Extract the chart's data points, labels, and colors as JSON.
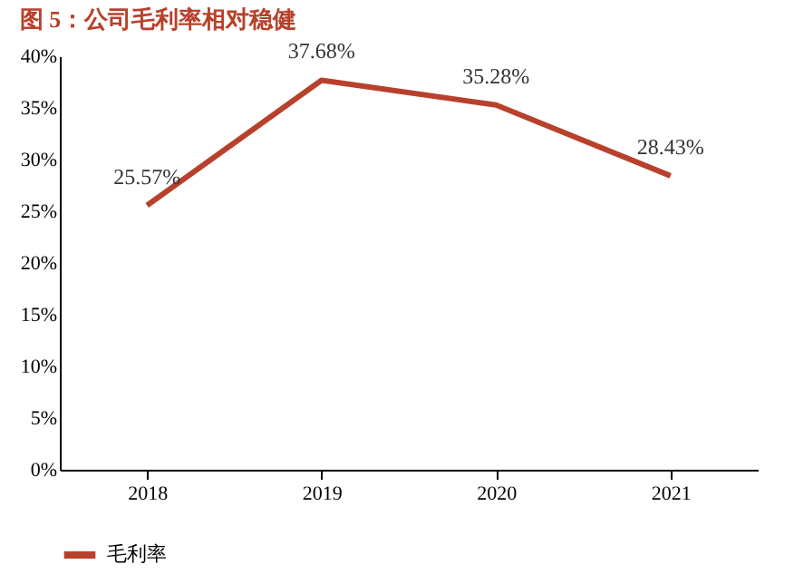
{
  "chart_data": {
    "type": "line",
    "title": "图 5：公司毛利率相对稳健",
    "categories": [
      "2018",
      "2019",
      "2020",
      "2021"
    ],
    "series": [
      {
        "name": "毛利率",
        "color": "#b8412c",
        "values": [
          25.57,
          37.68,
          35.28,
          28.43
        ],
        "value_labels": [
          "25.57%",
          "37.68%",
          "35.28%",
          "28.43%"
        ]
      }
    ],
    "ylim": [
      0,
      40
    ],
    "yticks": [
      {
        "value": 0,
        "label": "0%"
      },
      {
        "value": 5,
        "label": "5%"
      },
      {
        "value": 10,
        "label": "10%"
      },
      {
        "value": 15,
        "label": "15%"
      },
      {
        "value": 20,
        "label": "20%"
      },
      {
        "value": 25,
        "label": "25%"
      },
      {
        "value": 30,
        "label": "30%"
      },
      {
        "value": 35,
        "label": "35%"
      },
      {
        "value": 40,
        "label": "40%"
      }
    ],
    "grid": false,
    "legend": "bottom",
    "marker": "none",
    "line_style": "solid"
  }
}
